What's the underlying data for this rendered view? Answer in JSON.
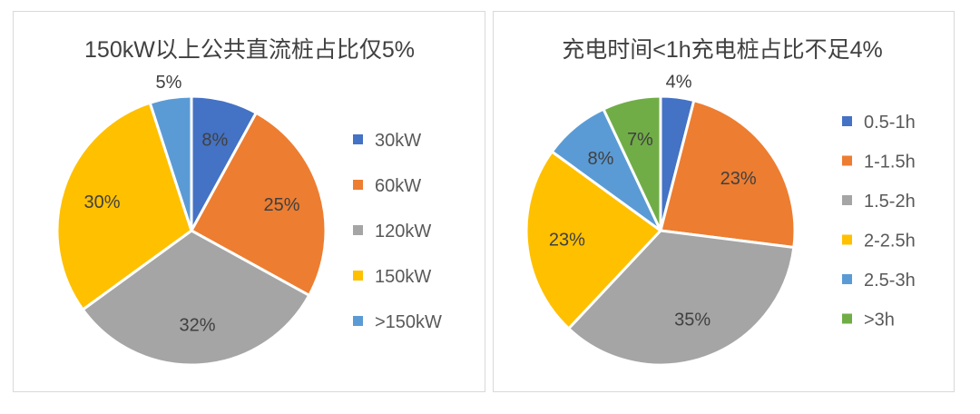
{
  "chart_data": [
    {
      "type": "pie",
      "title": "150kW以上公共直流桩占比仅5%",
      "categories": [
        "30kW",
        "60kW",
        "120kW",
        "150kW",
        ">150kW"
      ],
      "values": [
        8,
        25,
        32,
        30,
        5
      ],
      "data_labels": [
        "8%",
        "25%",
        "32%",
        "30%",
        "5%"
      ],
      "colors": [
        "#4472C4",
        "#ED7D31",
        "#A5A5A5",
        "#FFC000",
        "#5B9BD5"
      ],
      "legend_position": "right"
    },
    {
      "type": "pie",
      "title": "充电时间<1h充电桩占比不足4%",
      "categories": [
        "0.5-1h",
        "1-1.5h",
        "1.5-2h",
        "2-2.5h",
        "2.5-3h",
        ">3h"
      ],
      "values": [
        4,
        23,
        35,
        23,
        8,
        7
      ],
      "data_labels": [
        "4%",
        "23%",
        "35%",
        "23%",
        "8%",
        "7%"
      ],
      "colors": [
        "#4472C4",
        "#ED7D31",
        "#A5A5A5",
        "#FFC000",
        "#5B9BD5",
        "#70AD47"
      ],
      "legend_position": "right"
    }
  ]
}
